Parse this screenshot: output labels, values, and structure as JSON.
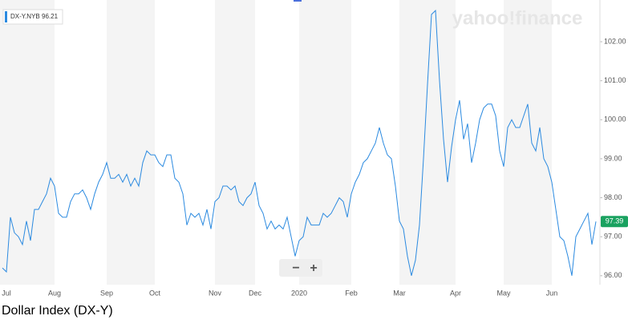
{
  "chart_data": {
    "type": "line",
    "title": "Dollar Index (DX-Y)",
    "watermark": "yahoo!finance",
    "legend_value": 96.21,
    "zoom_out": "−",
    "zoom_in": "+",
    "categories": [
      null,
      "Jul",
      null,
      null,
      null,
      null,
      null,
      null,
      null,
      null,
      null,
      null,
      null,
      "Aug",
      null,
      null,
      null,
      null,
      null,
      null,
      null,
      null,
      null,
      null,
      null,
      null,
      "Sep",
      null,
      null,
      null,
      null,
      null,
      null,
      null,
      null,
      null,
      null,
      null,
      "Oct",
      null,
      null,
      null,
      null,
      null,
      null,
      null,
      null,
      null,
      null,
      null,
      null,
      null,
      null,
      "Nov",
      null,
      null,
      null,
      null,
      null,
      null,
      null,
      null,
      null,
      "Dec",
      null,
      null,
      null,
      null,
      null,
      null,
      null,
      null,
      null,
      null,
      "2020",
      null,
      null,
      null,
      null,
      null,
      null,
      null,
      null,
      null,
      null,
      null,
      null,
      "Feb",
      null,
      null,
      null,
      null,
      null,
      null,
      null,
      null,
      null,
      null,
      null,
      "Mar",
      null,
      null,
      null,
      null,
      null,
      null,
      null,
      null,
      null,
      null,
      null,
      null,
      null,
      "Apr",
      null,
      null,
      null,
      null,
      null,
      null,
      null,
      null,
      null,
      null,
      null,
      "May",
      null,
      null,
      null,
      null,
      null,
      null,
      null,
      null,
      null,
      null,
      null,
      "Jun",
      null,
      null,
      null,
      null,
      null,
      null,
      null,
      null,
      null,
      null,
      null
    ],
    "series": [
      {
        "name": "DX-Y.NYB",
        "color": "#2b8ae0",
        "values": [
          96.2,
          96.1,
          97.5,
          97.1,
          97.0,
          96.8,
          97.4,
          96.9,
          97.7,
          97.7,
          97.9,
          98.1,
          98.5,
          98.3,
          97.6,
          97.5,
          97.5,
          97.9,
          98.1,
          98.1,
          98.2,
          98.0,
          97.7,
          98.1,
          98.4,
          98.6,
          98.9,
          98.5,
          98.5,
          98.6,
          98.4,
          98.6,
          98.3,
          98.5,
          98.3,
          98.9,
          99.2,
          99.1,
          99.1,
          98.9,
          98.8,
          99.1,
          99.1,
          98.5,
          98.4,
          98.1,
          97.3,
          97.6,
          97.5,
          97.6,
          97.3,
          97.7,
          97.2,
          97.9,
          98.0,
          98.3,
          98.3,
          98.2,
          98.3,
          97.9,
          97.8,
          98.0,
          98.1,
          98.4,
          97.8,
          97.6,
          97.2,
          97.4,
          97.2,
          97.3,
          97.2,
          97.5,
          97.0,
          96.5,
          96.9,
          97.0,
          97.5,
          97.3,
          97.3,
          97.3,
          97.6,
          97.5,
          97.6,
          97.8,
          98.0,
          97.9,
          97.5,
          98.1,
          98.4,
          98.6,
          98.9,
          99.0,
          99.2,
          99.4,
          99.8,
          99.4,
          99.1,
          99.0,
          98.3,
          97.4,
          97.2,
          96.5,
          96.0,
          96.4,
          97.3,
          99.0,
          100.9,
          102.7,
          102.8,
          101.0,
          99.5,
          98.4,
          99.3,
          100.0,
          100.5,
          99.5,
          99.9,
          98.9,
          99.4,
          100.0,
          100.3,
          100.4,
          100.4,
          100.1,
          99.2,
          98.8,
          99.8,
          100.0,
          99.8,
          99.8,
          100.1,
          100.4,
          99.4,
          99.2,
          99.8,
          99.0,
          98.8,
          98.4,
          97.7,
          97.0,
          96.9,
          96.5,
          96.0,
          97.0,
          97.2,
          97.4,
          97.6,
          96.8,
          97.39
        ]
      }
    ],
    "last_value_color": "#1aa260",
    "ylim": [
      95.77,
      103.07
    ],
    "yticks": [
      {
        "value": 96,
        "label": "96.00"
      },
      {
        "value": 97,
        "label": "97.00"
      },
      {
        "value": 98,
        "label": "98.00"
      },
      {
        "value": 99,
        "label": "99.00"
      },
      {
        "value": 100,
        "label": "100.00"
      },
      {
        "value": 101,
        "label": "101.00"
      },
      {
        "value": 102,
        "label": "102.00"
      }
    ],
    "grid": false,
    "shaded_months": true
  }
}
